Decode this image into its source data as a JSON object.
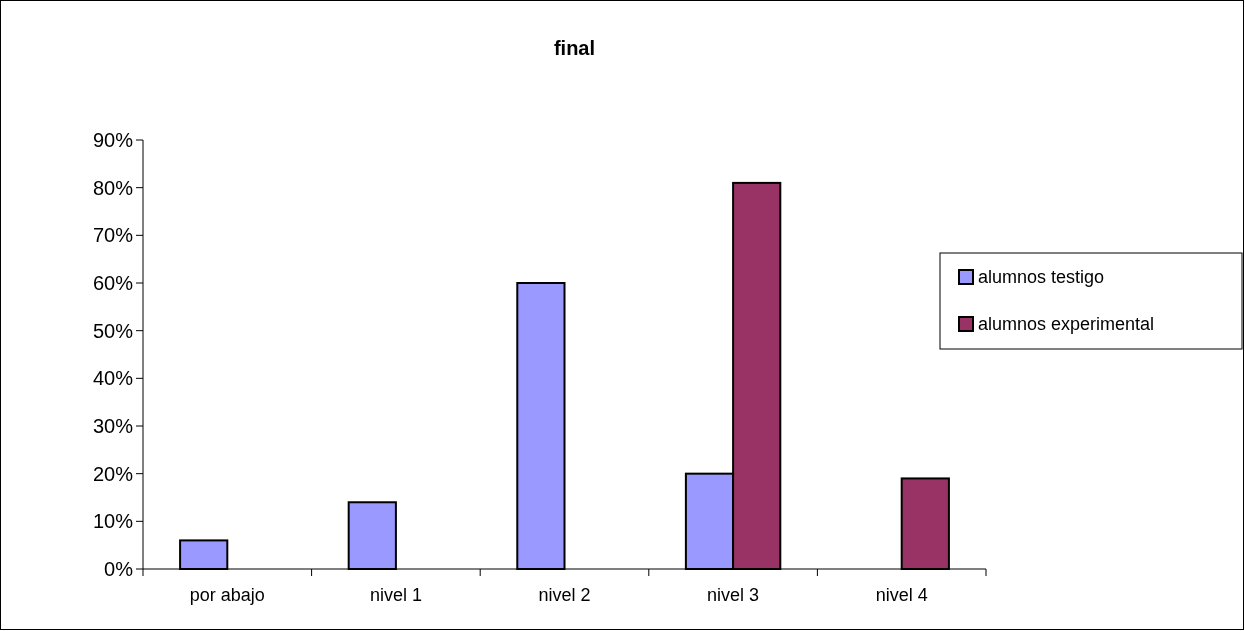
{
  "chart_data": {
    "type": "bar",
    "title": "final",
    "categories": [
      "por abajo",
      "nivel 1",
      "nivel 2",
      "nivel 3",
      "nivel 4"
    ],
    "series": [
      {
        "name": "alumnos testigo",
        "color": "#9999ff",
        "values": [
          6,
          14,
          60,
          20,
          null
        ]
      },
      {
        "name": "alumnos experimental",
        "color": "#993366",
        "values": [
          null,
          null,
          null,
          81,
          19
        ]
      }
    ],
    "ylim": [
      0,
      90
    ],
    "yticks": [
      {
        "value": 0,
        "label": "0%"
      },
      {
        "value": 10,
        "label": "10%"
      },
      {
        "value": 20,
        "label": "20%"
      },
      {
        "value": 30,
        "label": "30%"
      },
      {
        "value": 40,
        "label": "40%"
      },
      {
        "value": 50,
        "label": "50%"
      },
      {
        "value": 60,
        "label": "60%"
      },
      {
        "value": 70,
        "label": "70%"
      },
      {
        "value": 80,
        "label": "80%"
      },
      {
        "value": 90,
        "label": "90%"
      }
    ],
    "grid": false,
    "legend": "right"
  }
}
